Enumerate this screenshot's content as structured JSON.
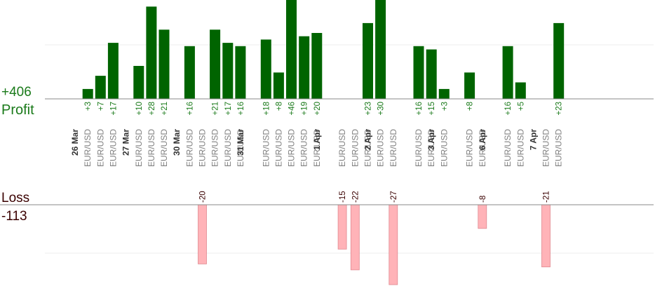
{
  "summary": {
    "profit_total": "+406",
    "profit_label": "Profit",
    "loss_label": "Loss",
    "loss_total": "-113"
  },
  "colors": {
    "profit_bar": "#006400",
    "profit_text": "#1a7a1a",
    "loss_bar": "#ffb3b8",
    "loss_bar_border": "#e08890",
    "loss_text": "#3a0000",
    "symbol_text": "#808080",
    "date_text": "#333333"
  },
  "chart_data": {
    "type": "bar",
    "profit_scale_max": 30,
    "loss_scale_max": 27,
    "dates": [
      {
        "label": "26 Mar",
        "slot": 0
      },
      {
        "label": "27 Mar",
        "slot": 4
      },
      {
        "label": "30 Mar",
        "slot": 8
      },
      {
        "label": "31 Mar",
        "slot": 13
      },
      {
        "label": "1 Apr",
        "slot": 19
      },
      {
        "label": "2 Apr",
        "slot": 23
      },
      {
        "label": "3 Apr",
        "slot": 28
      },
      {
        "label": "6 Apr",
        "slot": 32
      },
      {
        "label": "7 Apr",
        "slot": 36
      }
    ],
    "trades": [
      {
        "slot": 1,
        "symbol": "EUR/USD",
        "value": 3
      },
      {
        "slot": 2,
        "symbol": "EUR/USD",
        "value": 7
      },
      {
        "slot": 3,
        "symbol": "EUR/USD",
        "value": 17
      },
      {
        "slot": 5,
        "symbol": "EUR/USD",
        "value": 10
      },
      {
        "slot": 6,
        "symbol": "EUR/USD",
        "value": 28
      },
      {
        "slot": 7,
        "symbol": "EUR/USD",
        "value": 21
      },
      {
        "slot": 9,
        "symbol": "EUR/USD",
        "value": 16
      },
      {
        "slot": 10,
        "symbol": "EUR/USD",
        "value": -20
      },
      {
        "slot": 11,
        "symbol": "EUR/USD",
        "value": 21
      },
      {
        "slot": 12,
        "symbol": "EUR/USD",
        "value": 17
      },
      {
        "slot": 13,
        "symbol": "EUR/USD",
        "value": 16
      },
      {
        "slot": 15,
        "symbol": "EUR/USD",
        "value": 18
      },
      {
        "slot": 16,
        "symbol": "EUR/USD",
        "value": 8
      },
      {
        "slot": 17,
        "symbol": "EUR/USD",
        "value": 46
      },
      {
        "slot": 18,
        "symbol": "EUR/USD",
        "value": 19
      },
      {
        "slot": 19,
        "symbol": "EUR/USD",
        "value": 20
      },
      {
        "slot": 21,
        "symbol": "EUR/USD",
        "value": -15
      },
      {
        "slot": 22,
        "symbol": "EUR/USD",
        "value": -22
      },
      {
        "slot": 23,
        "symbol": "EUR/USD",
        "value": 23
      },
      {
        "slot": 24,
        "symbol": "EUR/USD",
        "value": 30
      },
      {
        "slot": 25,
        "symbol": "EUR/USD",
        "value": -27
      },
      {
        "slot": 27,
        "symbol": "EUR/USD",
        "value": 16
      },
      {
        "slot": 28,
        "symbol": "EUR/USD",
        "value": 15
      },
      {
        "slot": 29,
        "symbol": "EUR/USD",
        "value": 3
      },
      {
        "slot": 31,
        "symbol": "EUR/USD",
        "value": 8
      },
      {
        "slot": 32,
        "symbol": "EUR/USD",
        "value": -8
      },
      {
        "slot": 34,
        "symbol": "EUR/USD",
        "value": 16
      },
      {
        "slot": 35,
        "symbol": "EUR/USD",
        "value": 5
      },
      {
        "slot": 37,
        "symbol": "EUR/USD",
        "value": -21
      },
      {
        "slot": 38,
        "symbol": "EUR/USD",
        "value": 23
      }
    ]
  }
}
